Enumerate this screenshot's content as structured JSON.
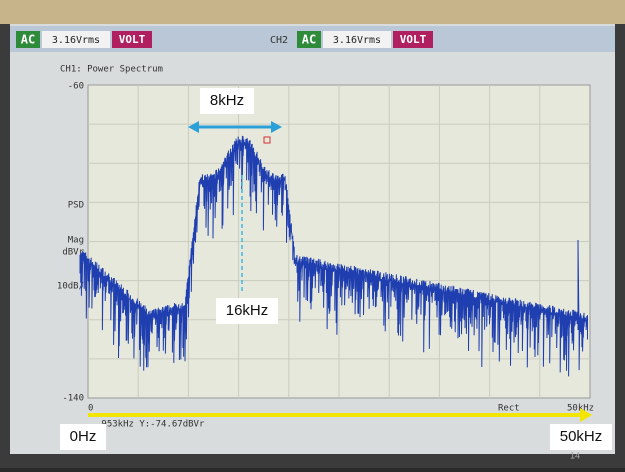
{
  "header": {
    "ch1_coupling": "AC",
    "ch1_range": "3.16Vrms",
    "ch1_unit": "VOLT",
    "ch2_label": "CH2",
    "ch2_coupling": "AC",
    "ch2_range": "3.16Vrms",
    "ch2_unit": "VOLT"
  },
  "screen": {
    "title": "CH1: Power Spectrum",
    "y_top": "-60",
    "y_bottom": "-140",
    "y_label_1": "PSD",
    "y_label_2": "Mag",
    "y_label_3": "dBVr",
    "y_scale": "10dB/",
    "x_start": "0",
    "x_mode": "Rect",
    "x_end": "50kHz",
    "readout": ".953kHz Y:-74.67dBVr"
  },
  "annotations": {
    "bandwidth": "8kHz",
    "center": "16kHz",
    "start": "0Hz",
    "end": "50kHz",
    "page": "14"
  }
}
